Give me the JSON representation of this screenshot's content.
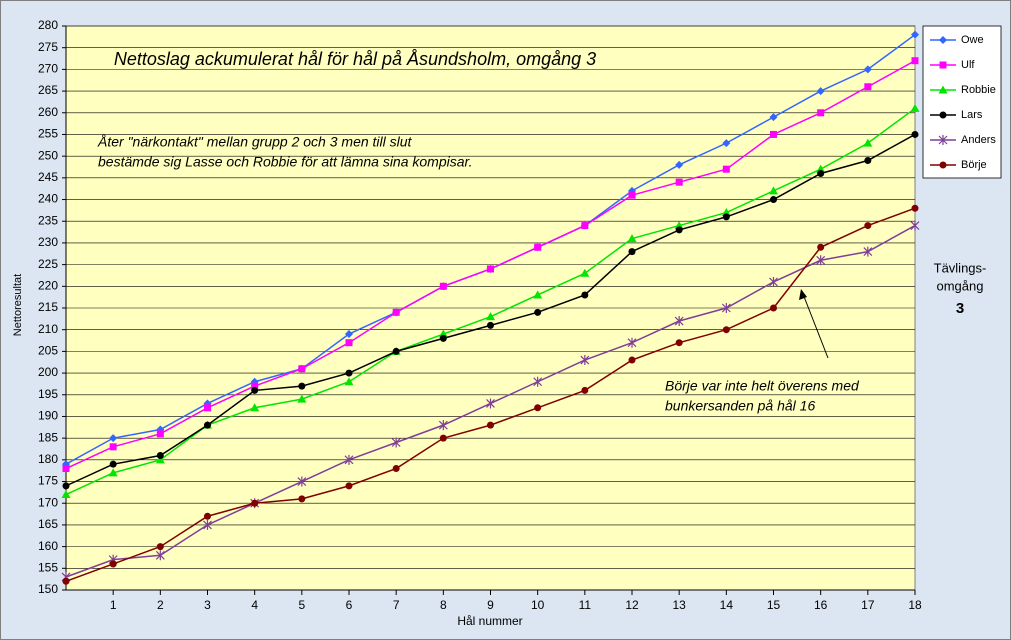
{
  "chart_data": {
    "type": "line",
    "title": "Nettoslag ackumulerat hål för hål på Åsundsholm, omgång 3",
    "x_label": "Hål nummer",
    "y_label": "Nettoresultat",
    "annotations": [
      [
        "Åter \"närkontakt\" mellan grupp 2 och 3 men till slut",
        "bestämde sig Lasse och Robbie för att lämna sina kompisar."
      ],
      [
        "Börje var inte helt överens med",
        "bunkersanden på hål 16"
      ]
    ],
    "round_label": [
      "Tävlings-",
      "omgång"
    ],
    "round_number": "3",
    "x": [
      0,
      1,
      2,
      3,
      4,
      5,
      6,
      7,
      8,
      9,
      10,
      11,
      12,
      13,
      14,
      15,
      16,
      17,
      18
    ],
    "xlim": [
      0,
      18
    ],
    "xticks": [
      1,
      2,
      3,
      4,
      5,
      6,
      7,
      8,
      9,
      10,
      11,
      12,
      13,
      14,
      15,
      16,
      17,
      18
    ],
    "ylim": [
      150,
      280
    ],
    "yticks": [
      150,
      155,
      160,
      165,
      170,
      175,
      180,
      185,
      190,
      195,
      200,
      205,
      210,
      215,
      220,
      225,
      230,
      235,
      240,
      245,
      250,
      255,
      260,
      265,
      270,
      275,
      280
    ],
    "grid": true,
    "legend": "right",
    "series": [
      {
        "name": "Owe",
        "color": "#3366ff",
        "marker": "diamond",
        "values": [
          179,
          185,
          187,
          193,
          198,
          201,
          209,
          214,
          220,
          224,
          229,
          234,
          242,
          248,
          253,
          259,
          265,
          270,
          278
        ]
      },
      {
        "name": "Ulf",
        "color": "#ff00ff",
        "marker": "square",
        "values": [
          178,
          183,
          186,
          192,
          197,
          201,
          207,
          214,
          220,
          224,
          229,
          234,
          241,
          244,
          247,
          255,
          260,
          266,
          272
        ]
      },
      {
        "name": "Robbie",
        "color": "#00e600",
        "marker": "triangle",
        "values": [
          172,
          177,
          180,
          188,
          192,
          194,
          198,
          205,
          209,
          213,
          218,
          223,
          231,
          234,
          237,
          242,
          247,
          253,
          261
        ]
      },
      {
        "name": "Lars",
        "color": "#000000",
        "marker": "circle",
        "values": [
          174,
          179,
          181,
          188,
          196,
          197,
          200,
          205,
          208,
          211,
          214,
          218,
          228,
          233,
          236,
          240,
          246,
          249,
          255
        ]
      },
      {
        "name": "Anders",
        "color": "#7f3f98",
        "marker": "star",
        "values": [
          153,
          157,
          158,
          165,
          170,
          175,
          180,
          184,
          188,
          193,
          198,
          203,
          207,
          212,
          215,
          221,
          226,
          228,
          234
        ]
      },
      {
        "name": "Börje",
        "color": "#800000",
        "marker": "circle",
        "values": [
          152,
          156,
          160,
          167,
          170,
          171,
          174,
          178,
          185,
          188,
          192,
          196,
          203,
          207,
          210,
          215,
          229,
          234,
          238
        ]
      }
    ]
  }
}
